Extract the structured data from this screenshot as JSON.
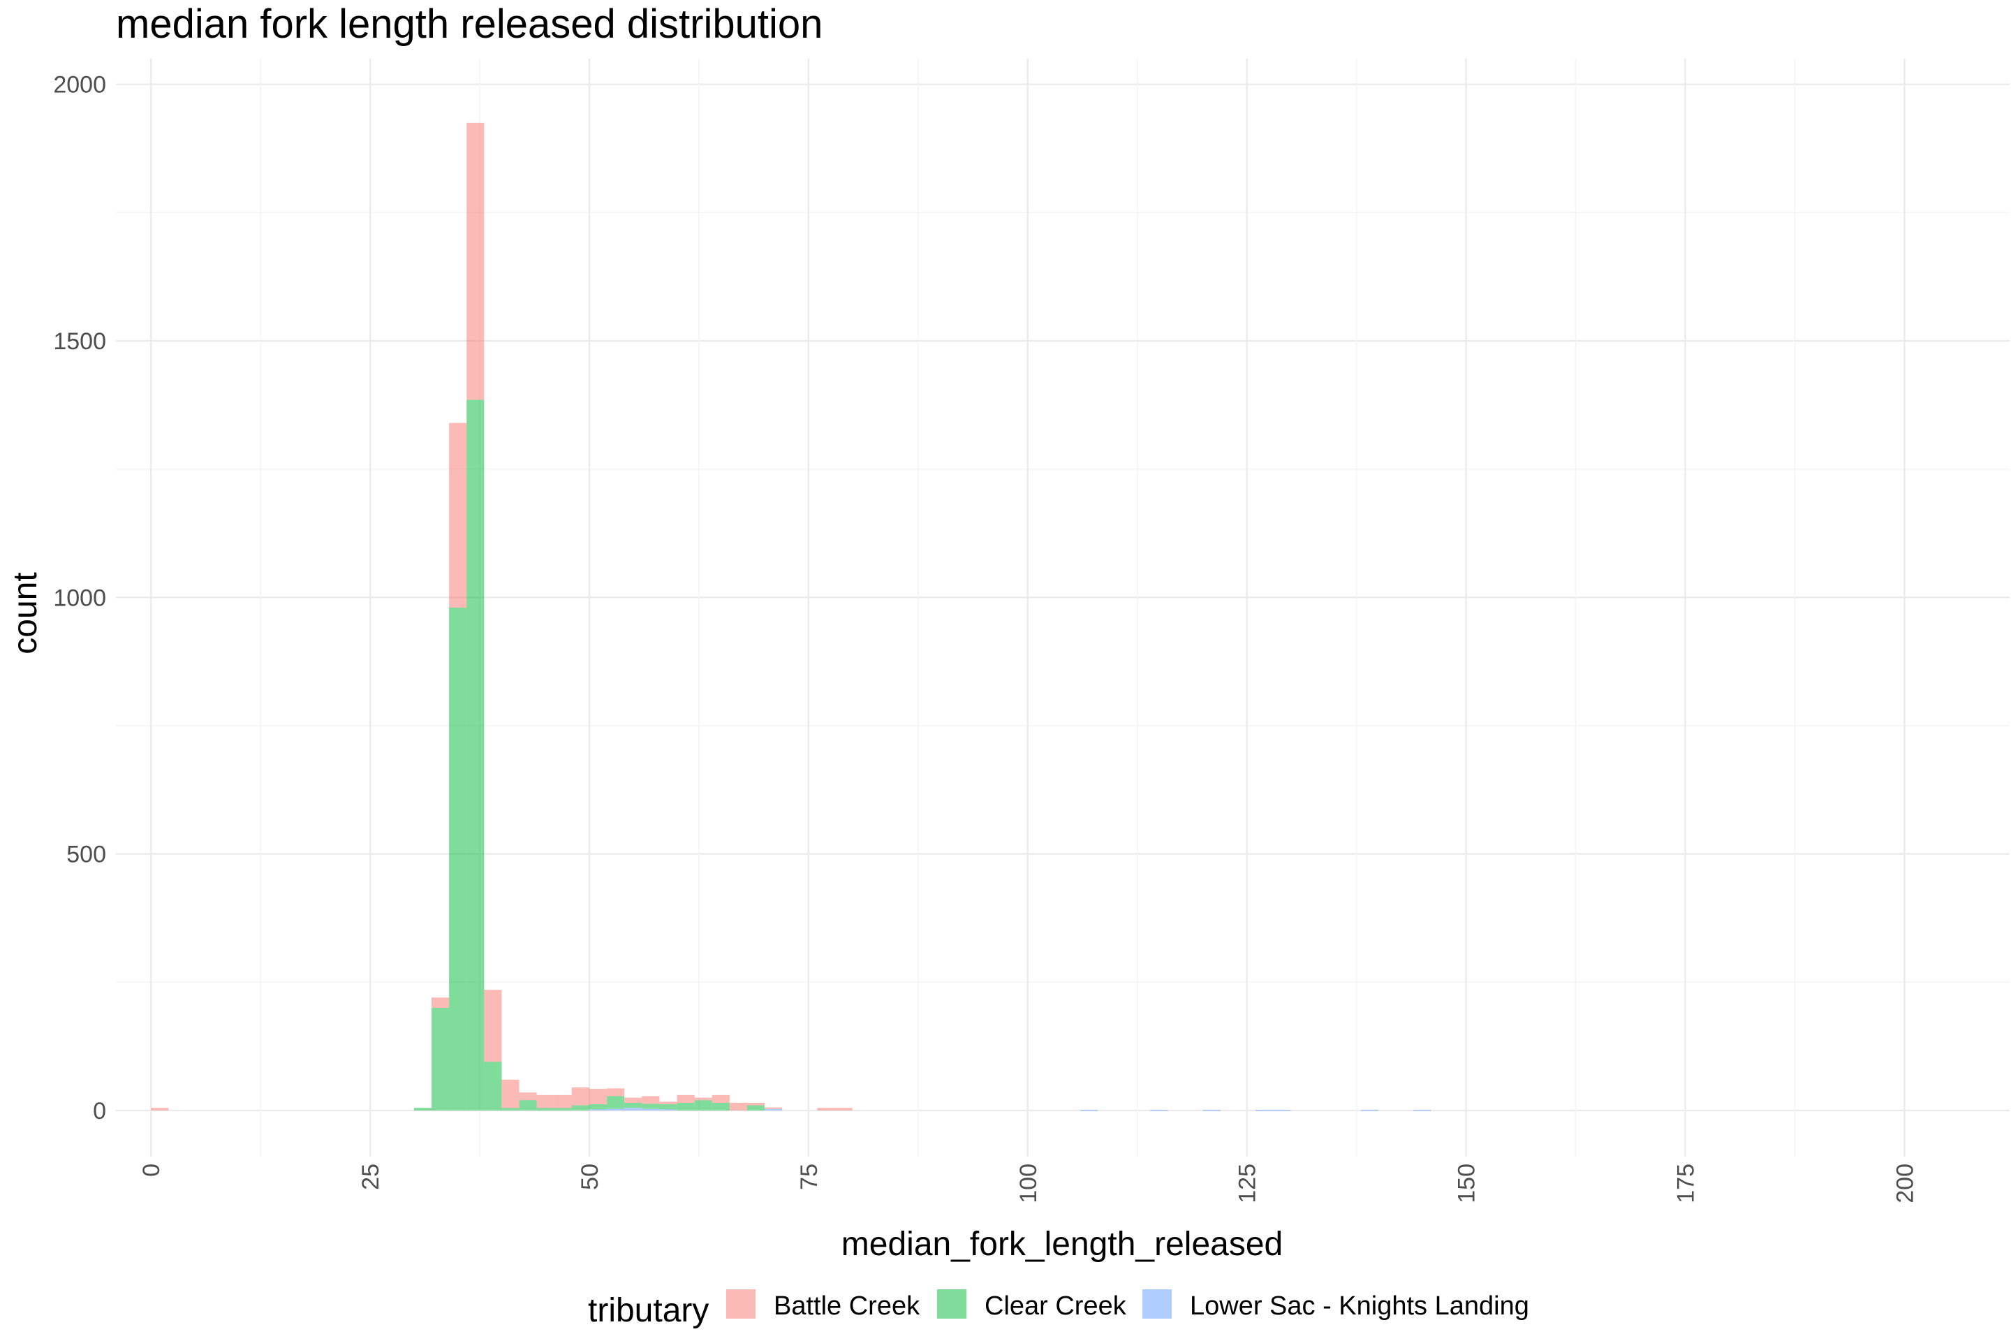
{
  "chart_data": {
    "type": "bar",
    "subtype": "stacked-histogram",
    "title": "median fork length released distribution",
    "xlabel": "median_fork_length_released",
    "ylabel": "count",
    "xlim": [
      -4,
      212
    ],
    "ylim": [
      -90,
      2050
    ],
    "x_ticks": [
      0,
      25,
      50,
      75,
      100,
      125,
      150,
      175,
      200
    ],
    "x_tick_labels": [
      "0",
      "25",
      "50",
      "75",
      "100",
      "125",
      "150",
      "175",
      "200"
    ],
    "y_ticks": [
      0,
      500,
      1000,
      1500,
      2000
    ],
    "y_tick_labels": [
      "0",
      "500",
      "1000",
      "1500",
      "2000"
    ],
    "x_tick_rotation": "vertical",
    "grid": true,
    "bin_width": 2,
    "legend": {
      "title": "tributary",
      "position": "bottom"
    },
    "series": [
      {
        "name": "Battle Creek",
        "color": "#f8766d",
        "opacity": 0.5,
        "bins": [
          {
            "x0": 0,
            "x1": 2,
            "count": 5
          },
          {
            "x0": 32,
            "x1": 34,
            "count": 20
          },
          {
            "x0": 34,
            "x1": 36,
            "count": 360
          },
          {
            "x0": 36,
            "x1": 38,
            "count": 540
          },
          {
            "x0": 38,
            "x1": 40,
            "count": 140
          },
          {
            "x0": 40,
            "x1": 42,
            "count": 55
          },
          {
            "x0": 42,
            "x1": 44,
            "count": 15
          },
          {
            "x0": 44,
            "x1": 46,
            "count": 25
          },
          {
            "x0": 46,
            "x1": 48,
            "count": 25
          },
          {
            "x0": 48,
            "x1": 50,
            "count": 35
          },
          {
            "x0": 50,
            "x1": 52,
            "count": 30
          },
          {
            "x0": 52,
            "x1": 54,
            "count": 15
          },
          {
            "x0": 54,
            "x1": 56,
            "count": 10
          },
          {
            "x0": 56,
            "x1": 58,
            "count": 15
          },
          {
            "x0": 58,
            "x1": 60,
            "count": 5
          },
          {
            "x0": 60,
            "x1": 62,
            "count": 15
          },
          {
            "x0": 62,
            "x1": 64,
            "count": 5
          },
          {
            "x0": 64,
            "x1": 66,
            "count": 15
          },
          {
            "x0": 66,
            "x1": 68,
            "count": 15
          },
          {
            "x0": 68,
            "x1": 70,
            "count": 5
          },
          {
            "x0": 70,
            "x1": 72,
            "count": 3
          },
          {
            "x0": 76,
            "x1": 78,
            "count": 5
          },
          {
            "x0": 78,
            "x1": 80,
            "count": 5
          }
        ]
      },
      {
        "name": "Clear Creek",
        "color": "#00ba38",
        "opacity": 0.5,
        "bins": [
          {
            "x0": 30,
            "x1": 32,
            "count": 5
          },
          {
            "x0": 32,
            "x1": 34,
            "count": 200
          },
          {
            "x0": 34,
            "x1": 36,
            "count": 980
          },
          {
            "x0": 36,
            "x1": 38,
            "count": 1385
          },
          {
            "x0": 38,
            "x1": 40,
            "count": 95
          },
          {
            "x0": 40,
            "x1": 42,
            "count": 5
          },
          {
            "x0": 42,
            "x1": 44,
            "count": 20
          },
          {
            "x0": 44,
            "x1": 46,
            "count": 5
          },
          {
            "x0": 46,
            "x1": 48,
            "count": 5
          },
          {
            "x0": 48,
            "x1": 50,
            "count": 10
          },
          {
            "x0": 50,
            "x1": 52,
            "count": 10
          },
          {
            "x0": 52,
            "x1": 54,
            "count": 25
          },
          {
            "x0": 54,
            "x1": 56,
            "count": 10
          },
          {
            "x0": 56,
            "x1": 58,
            "count": 10
          },
          {
            "x0": 58,
            "x1": 60,
            "count": 10
          },
          {
            "x0": 60,
            "x1": 62,
            "count": 15
          },
          {
            "x0": 62,
            "x1": 64,
            "count": 20
          },
          {
            "x0": 64,
            "x1": 66,
            "count": 15
          },
          {
            "x0": 68,
            "x1": 70,
            "count": 10
          }
        ]
      },
      {
        "name": "Lower Sac - Knights Landing",
        "color": "#619cff",
        "opacity": 0.5,
        "bins": [
          {
            "x0": 50,
            "x1": 52,
            "count": 2
          },
          {
            "x0": 52,
            "x1": 54,
            "count": 3
          },
          {
            "x0": 54,
            "x1": 56,
            "count": 5
          },
          {
            "x0": 56,
            "x1": 58,
            "count": 3
          },
          {
            "x0": 58,
            "x1": 60,
            "count": 2
          },
          {
            "x0": 70,
            "x1": 72,
            "count": 3
          },
          {
            "x0": 106,
            "x1": 108,
            "count": 1
          },
          {
            "x0": 114,
            "x1": 116,
            "count": 1
          },
          {
            "x0": 120,
            "x1": 122,
            "count": 1
          },
          {
            "x0": 126,
            "x1": 128,
            "count": 1
          },
          {
            "x0": 128,
            "x1": 130,
            "count": 1
          },
          {
            "x0": 138,
            "x1": 140,
            "count": 1
          },
          {
            "x0": 144,
            "x1": 146,
            "count": 1
          }
        ]
      }
    ]
  }
}
